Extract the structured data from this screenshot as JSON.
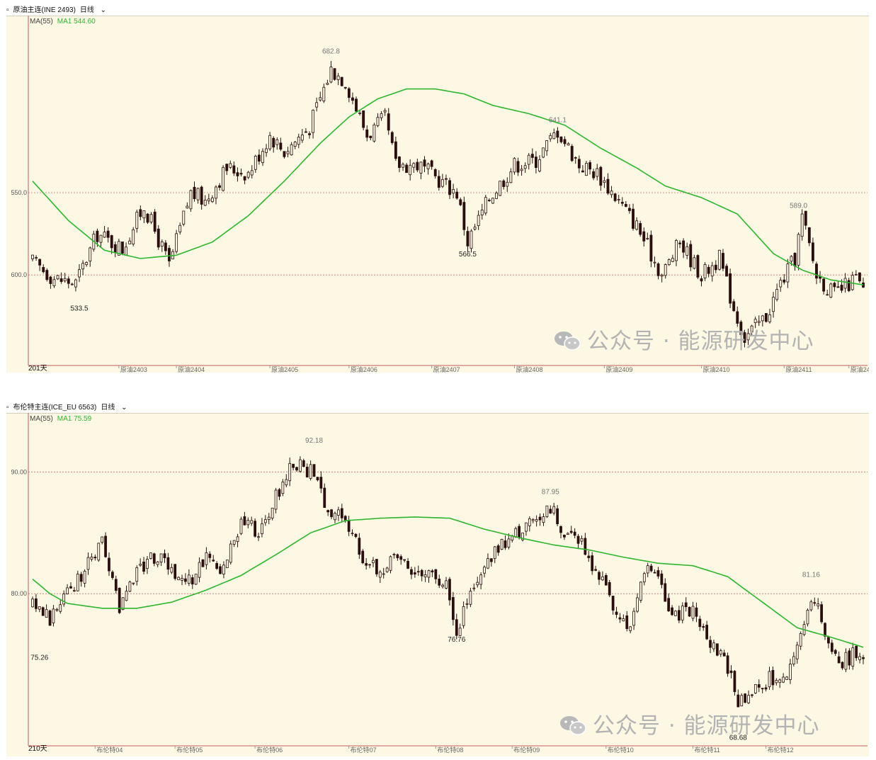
{
  "watermark": "公众号 · 能源研发中心",
  "panels": [
    {
      "header_symbol": "原油主连(INE 2493)",
      "header_period": "日线",
      "ma_label": "MA(55)",
      "ma_value": "MA1 544.60",
      "colors": {
        "candle": "#2a0e0e",
        "ma": "#2fb52f",
        "grid": "#c77070"
      },
      "chart_data": {
        "type": "candlestick",
        "title": "",
        "xlabel": "201天",
        "ylabel": "",
        "ylim": [
          495,
          705
        ],
        "grid_y": [
          550,
          600
        ],
        "y_tick_labels": [
          "600.0",
          "550.0"
        ],
        "x_tick_labels": [
          {
            "label": "原油2403",
            "index": 24
          },
          {
            "label": "原油2404",
            "index": 40
          },
          {
            "label": "原油2405",
            "index": 66
          },
          {
            "label": "原油2406",
            "index": 88
          },
          {
            "label": "原油2407",
            "index": 111
          },
          {
            "label": "原油2408",
            "index": 134
          },
          {
            "label": "原油2409",
            "index": 159
          },
          {
            "label": "原油2410",
            "index": 186
          },
          {
            "label": "原油2411",
            "index": 209
          },
          {
            "label": "原油2412",
            "index": 227
          }
        ],
        "annotations": [
          {
            "label": "682.8",
            "index": 83
          },
          {
            "label": "533.5",
            "index": 13
          },
          {
            "label": "566.5",
            "index": 121
          },
          {
            "label": "641.1",
            "index": 146
          },
          {
            "label": "589.0",
            "index": 213
          },
          {
            "label": "492.2",
            "index": 197
          }
        ],
        "close_anchors": [
          [
            0,
            558
          ],
          [
            6,
            548
          ],
          [
            12,
            545
          ],
          [
            18,
            575
          ],
          [
            25,
            566
          ],
          [
            31,
            592
          ],
          [
            38,
            556
          ],
          [
            44,
            600
          ],
          [
            48,
            595
          ],
          [
            54,
            615
          ],
          [
            60,
            612
          ],
          [
            66,
            635
          ],
          [
            70,
            625
          ],
          [
            77,
            640
          ],
          [
            83,
            675
          ],
          [
            87,
            668
          ],
          [
            93,
            635
          ],
          [
            98,
            645
          ],
          [
            101,
            617
          ],
          [
            107,
            617
          ],
          [
            113,
            608
          ],
          [
            118,
            600
          ],
          [
            121,
            570
          ],
          [
            127,
            597
          ],
          [
            134,
            617
          ],
          [
            140,
            620
          ],
          [
            146,
            638
          ],
          [
            152,
            617
          ],
          [
            157,
            612
          ],
          [
            163,
            595
          ],
          [
            168,
            580
          ],
          [
            175,
            550
          ],
          [
            180,
            570
          ],
          [
            186,
            550
          ],
          [
            191,
            560
          ],
          [
            195,
            530
          ],
          [
            198,
            512
          ],
          [
            204,
            525
          ],
          [
            208,
            545
          ],
          [
            212,
            560
          ],
          [
            214,
            585
          ],
          [
            218,
            550
          ],
          [
            223,
            538
          ],
          [
            229,
            548
          ],
          [
            231,
            540
          ]
        ],
        "ma_points": [
          [
            0,
            607
          ],
          [
            10,
            583
          ],
          [
            20,
            565
          ],
          [
            30,
            560
          ],
          [
            40,
            562
          ],
          [
            50,
            570
          ],
          [
            60,
            586
          ],
          [
            70,
            607
          ],
          [
            80,
            630
          ],
          [
            88,
            646
          ],
          [
            96,
            657
          ],
          [
            104,
            663
          ],
          [
            112,
            663
          ],
          [
            120,
            660
          ],
          [
            128,
            653
          ],
          [
            138,
            648
          ],
          [
            148,
            641
          ],
          [
            158,
            627
          ],
          [
            168,
            615
          ],
          [
            176,
            604
          ],
          [
            186,
            597
          ],
          [
            196,
            587
          ],
          [
            206,
            563
          ],
          [
            214,
            553
          ],
          [
            222,
            547
          ],
          [
            231,
            544
          ]
        ]
      }
    },
    {
      "header_symbol": "布伦特主连(ICE_EU 6563)",
      "header_period": "日线",
      "ma_label": "MA(55)",
      "ma_value": "MA1 75.59",
      "colors": {
        "candle": "#2a0e0e",
        "ma": "#2fb52f",
        "grid": "#c77070"
      },
      "chart_data": {
        "type": "candlestick",
        "title": "",
        "xlabel": "210天",
        "ylabel": "",
        "ylim": [
          67.5,
          94.5
        ],
        "grid_y": [
          80,
          90
        ],
        "y_tick_labels": [
          "80.00",
          "90.00"
        ],
        "x_tick_labels": [
          {
            "label": "布伦特04",
            "index": 18
          },
          {
            "label": "布伦特05",
            "index": 41
          },
          {
            "label": "布伦特06",
            "index": 64
          },
          {
            "label": "布伦特07",
            "index": 91
          },
          {
            "label": "布伦特08",
            "index": 116
          },
          {
            "label": "布伦特09",
            "index": 138
          },
          {
            "label": "布伦特10",
            "index": 165
          },
          {
            "label": "布伦特11",
            "index": 190
          },
          {
            "label": "布伦特12",
            "index": 211
          }
        ],
        "annotations": [
          {
            "label": "92.18",
            "index": 81
          },
          {
            "label": "75.26",
            "index": 2
          },
          {
            "label": "76.76",
            "index": 122
          },
          {
            "label": "87.95",
            "index": 149
          },
          {
            "label": "81.16",
            "index": 224
          },
          {
            "label": "68.68",
            "index": 203
          }
        ],
        "close_anchors": [
          [
            0,
            79
          ],
          [
            5,
            78
          ],
          [
            10,
            80
          ],
          [
            15,
            82
          ],
          [
            20,
            84
          ],
          [
            25,
            79
          ],
          [
            30,
            82
          ],
          [
            35,
            83
          ],
          [
            40,
            82
          ],
          [
            45,
            81
          ],
          [
            50,
            83
          ],
          [
            55,
            82
          ],
          [
            60,
            86
          ],
          [
            65,
            85
          ],
          [
            70,
            88
          ],
          [
            75,
            91
          ],
          [
            80,
            90
          ],
          [
            85,
            87
          ],
          [
            90,
            86
          ],
          [
            95,
            83
          ],
          [
            100,
            82
          ],
          [
            105,
            83
          ],
          [
            110,
            82
          ],
          [
            115,
            82
          ],
          [
            120,
            80
          ],
          [
            122,
            77
          ],
          [
            126,
            80
          ],
          [
            130,
            82
          ],
          [
            135,
            84
          ],
          [
            140,
            85
          ],
          [
            145,
            86
          ],
          [
            149,
            87
          ],
          [
            153,
            85
          ],
          [
            158,
            84
          ],
          [
            162,
            82
          ],
          [
            167,
            79
          ],
          [
            172,
            77
          ],
          [
            176,
            82
          ],
          [
            180,
            81
          ],
          [
            185,
            78
          ],
          [
            190,
            79
          ],
          [
            195,
            76
          ],
          [
            200,
            74
          ],
          [
            203,
            71
          ],
          [
            208,
            72
          ],
          [
            212,
            73
          ],
          [
            217,
            73
          ],
          [
            221,
            77
          ],
          [
            224,
            80
          ],
          [
            228,
            77
          ],
          [
            232,
            74
          ],
          [
            236,
            75
          ],
          [
            239,
            74
          ]
        ],
        "ma_points": [
          [
            0,
            81.2
          ],
          [
            5,
            80
          ],
          [
            10,
            79.2
          ],
          [
            20,
            78.8
          ],
          [
            30,
            78.8
          ],
          [
            40,
            79.3
          ],
          [
            50,
            80.3
          ],
          [
            60,
            81.5
          ],
          [
            70,
            83.2
          ],
          [
            80,
            85
          ],
          [
            90,
            86
          ],
          [
            100,
            86.2
          ],
          [
            110,
            86.3
          ],
          [
            120,
            86.2
          ],
          [
            130,
            85.3
          ],
          [
            140,
            84.6
          ],
          [
            150,
            84
          ],
          [
            160,
            83.6
          ],
          [
            170,
            83
          ],
          [
            180,
            82.5
          ],
          [
            190,
            82.3
          ],
          [
            200,
            81.4
          ],
          [
            210,
            79.3
          ],
          [
            220,
            77.2
          ],
          [
            230,
            76.4
          ],
          [
            239,
            75.6
          ]
        ]
      }
    }
  ]
}
